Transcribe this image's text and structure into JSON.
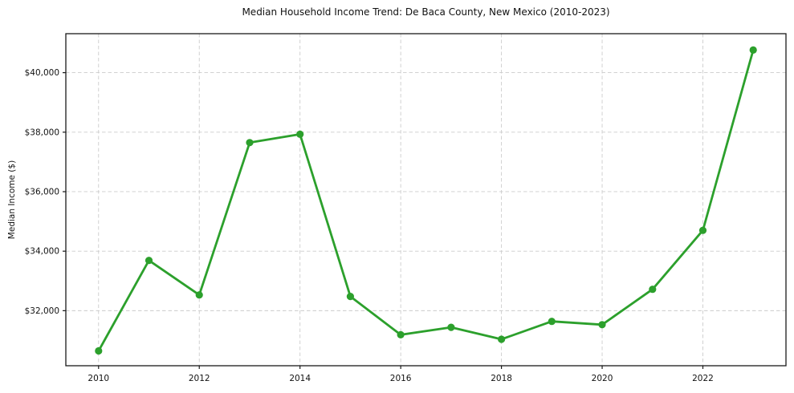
{
  "figure": {
    "title": "Median Household Income Trend: De Baca County, New Mexico (2010-2023)"
  },
  "chart_data": {
    "type": "line",
    "title": "Median Household Income Trend: De Baca County, New Mexico (2010-2023)",
    "xlabel": "",
    "ylabel": "Median Income ($)",
    "series_name": "Median Household Income",
    "x": [
      2010,
      2011,
      2012,
      2013,
      2014,
      2015,
      2016,
      2017,
      2018,
      2019,
      2020,
      2021,
      2022,
      2023
    ],
    "values": [
      30650,
      33690,
      32530,
      37650,
      37930,
      32480,
      31190,
      31440,
      31040,
      31640,
      31530,
      32720,
      34700,
      40760
    ],
    "xticks": [
      2010,
      2012,
      2014,
      2016,
      2018,
      2020,
      2022
    ],
    "xtick_labels": [
      "2010",
      "2012",
      "2014",
      "2016",
      "2018",
      "2020",
      "2022"
    ],
    "yticks": [
      32000,
      34000,
      36000,
      38000,
      40000
    ],
    "ytick_labels": [
      "$32,000",
      "$34,000",
      "$36,000",
      "$38,000",
      "$40,000"
    ],
    "xlim": [
      2009.35,
      2023.65
    ],
    "ylim": [
      30150,
      41310
    ],
    "grid": true,
    "grid_style": "dashed",
    "legend": "none",
    "colors": {
      "line": "#2ca02c",
      "marker": "#2ca02c",
      "grid": "#cccccc",
      "spine": "#1a1a1a",
      "text": "#111111",
      "background": "#ffffff"
    }
  }
}
